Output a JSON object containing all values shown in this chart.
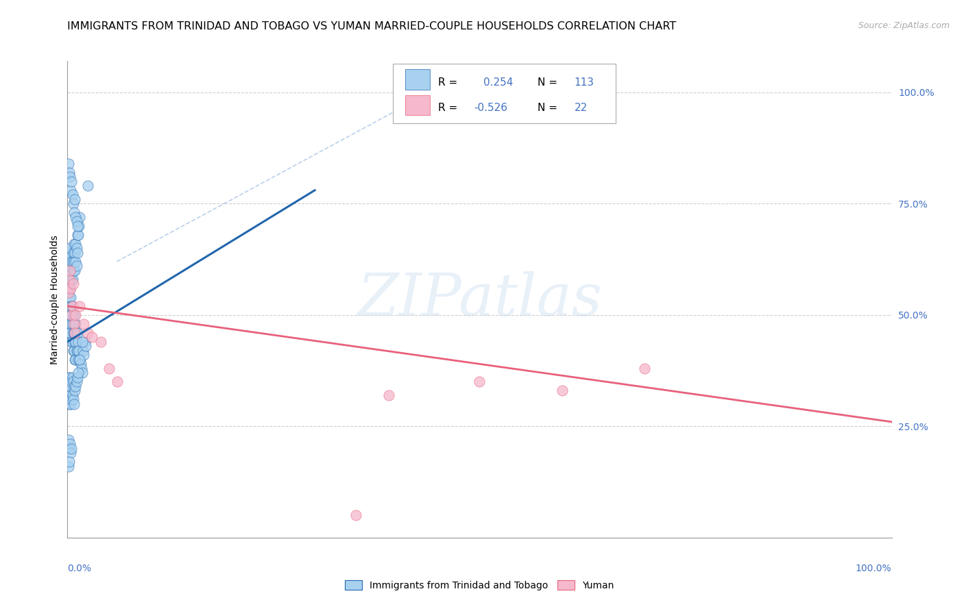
{
  "title": "IMMIGRANTS FROM TRINIDAD AND TOBAGO VS YUMAN MARRIED-COUPLE HOUSEHOLDS CORRELATION CHART",
  "source": "Source: ZipAtlas.com",
  "ylabel": "Married-couple Households",
  "right_yticks": [
    "100.0%",
    "75.0%",
    "50.0%",
    "25.0%"
  ],
  "right_ytick_vals": [
    1.0,
    0.75,
    0.5,
    0.25
  ],
  "watermark": "ZIPatlas",
  "blue_color": "#a8d1f0",
  "pink_color": "#f5b8cc",
  "blue_line_color": "#2166ac",
  "pink_line_color": "#e8607a",
  "dashed_line_color": "#aec8e8",
  "blue_scatter_x": [
    0.001,
    0.001,
    0.001,
    0.002,
    0.002,
    0.002,
    0.003,
    0.003,
    0.003,
    0.004,
    0.004,
    0.004,
    0.005,
    0.005,
    0.005,
    0.006,
    0.006,
    0.006,
    0.007,
    0.007,
    0.007,
    0.008,
    0.008,
    0.008,
    0.009,
    0.009,
    0.009,
    0.01,
    0.01,
    0.01,
    0.011,
    0.011,
    0.012,
    0.012,
    0.013,
    0.013,
    0.014,
    0.015,
    0.016,
    0.017,
    0.018,
    0.019,
    0.02,
    0.021,
    0.022,
    0.001,
    0.001,
    0.002,
    0.002,
    0.003,
    0.003,
    0.004,
    0.004,
    0.005,
    0.005,
    0.006,
    0.006,
    0.007,
    0.007,
    0.008,
    0.008,
    0.009,
    0.009,
    0.01,
    0.01,
    0.011,
    0.011,
    0.012,
    0.012,
    0.013,
    0.014,
    0.015,
    0.001,
    0.001,
    0.002,
    0.002,
    0.003,
    0.003,
    0.004,
    0.004,
    0.005,
    0.005,
    0.006,
    0.006,
    0.007,
    0.007,
    0.008,
    0.008,
    0.009,
    0.01,
    0.011,
    0.012,
    0.013,
    0.015,
    0.018,
    0.001,
    0.002,
    0.003,
    0.004,
    0.005,
    0.006,
    0.007,
    0.008,
    0.009,
    0.01,
    0.011,
    0.012,
    0.025,
    0.001,
    0.002,
    0.003,
    0.004,
    0.005,
    0.001,
    0.002
  ],
  "blue_scatter_y": [
    0.56,
    0.52,
    0.48,
    0.54,
    0.5,
    0.46,
    0.56,
    0.52,
    0.48,
    0.54,
    0.5,
    0.46,
    0.52,
    0.48,
    0.44,
    0.52,
    0.48,
    0.44,
    0.5,
    0.46,
    0.42,
    0.5,
    0.46,
    0.42,
    0.48,
    0.44,
    0.4,
    0.48,
    0.44,
    0.4,
    0.46,
    0.42,
    0.46,
    0.42,
    0.44,
    0.4,
    0.42,
    0.4,
    0.39,
    0.38,
    0.37,
    0.42,
    0.41,
    0.44,
    0.43,
    0.64,
    0.6,
    0.62,
    0.58,
    0.65,
    0.61,
    0.63,
    0.59,
    0.62,
    0.58,
    0.62,
    0.58,
    0.64,
    0.6,
    0.66,
    0.62,
    0.64,
    0.6,
    0.66,
    0.62,
    0.65,
    0.61,
    0.68,
    0.64,
    0.68,
    0.7,
    0.72,
    0.36,
    0.32,
    0.34,
    0.3,
    0.36,
    0.32,
    0.34,
    0.3,
    0.35,
    0.31,
    0.36,
    0.32,
    0.35,
    0.31,
    0.34,
    0.3,
    0.33,
    0.34,
    0.35,
    0.36,
    0.37,
    0.4,
    0.44,
    0.84,
    0.82,
    0.81,
    0.78,
    0.8,
    0.77,
    0.75,
    0.73,
    0.76,
    0.72,
    0.71,
    0.7,
    0.79,
    0.22,
    0.2,
    0.21,
    0.19,
    0.2,
    0.16,
    0.17
  ],
  "pink_scatter_x": [
    0.001,
    0.002,
    0.003,
    0.004,
    0.005,
    0.006,
    0.007,
    0.008,
    0.009,
    0.01,
    0.015,
    0.02,
    0.025,
    0.03,
    0.04,
    0.05,
    0.06,
    0.39,
    0.5,
    0.6,
    0.7,
    0.35
  ],
  "pink_scatter_y": [
    0.55,
    0.58,
    0.6,
    0.56,
    0.5,
    0.52,
    0.57,
    0.48,
    0.46,
    0.5,
    0.52,
    0.48,
    0.46,
    0.45,
    0.44,
    0.38,
    0.35,
    0.32,
    0.35,
    0.33,
    0.38,
    0.05
  ],
  "blue_line_x": [
    0.0,
    0.3
  ],
  "blue_line_y": [
    0.44,
    0.78
  ],
  "pink_line_x": [
    0.0,
    1.0
  ],
  "pink_line_y": [
    0.52,
    0.26
  ],
  "dashed_line_x": [
    0.06,
    0.4
  ],
  "dashed_line_y": [
    0.62,
    0.96
  ],
  "xlim": [
    0.0,
    1.0
  ],
  "ylim": [
    0.0,
    1.07
  ]
}
